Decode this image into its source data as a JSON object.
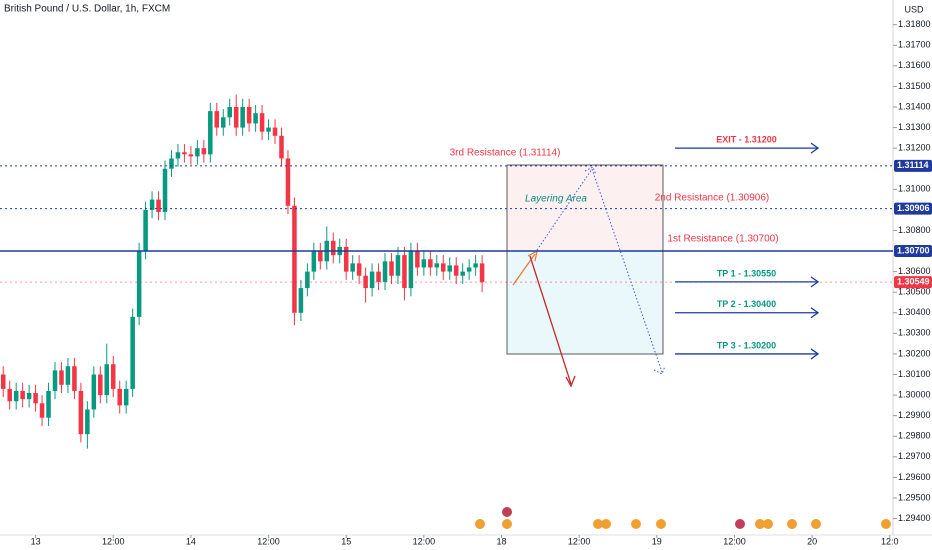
{
  "chart_data": {
    "type": "candlestick",
    "title": "British Pound / U.S. Dollar, 1h, FXCM",
    "currency": "USD",
    "up_color": "#089981",
    "down_color": "#f23645",
    "open": [
      1.301,
      1.3003,
      1.2997,
      1.3002,
      1.2998,
      1.3001,
      1.2996,
      1.2989,
      1.3002,
      1.3012,
      1.3005,
      1.3014,
      1.3002,
      1.2981,
      1.2993,
      1.301,
      1.3,
      1.3015,
      1.3003,
      1.2995,
      1.3003,
      1.3038,
      1.307,
      1.309,
      1.3095,
      1.3089,
      1.311,
      1.3115,
      1.3118,
      1.3117,
      1.3116,
      1.312,
      1.3117,
      1.3138,
      1.313,
      1.3135,
      1.314,
      1.313,
      1.314,
      1.3132,
      1.3137,
      1.3128,
      1.313,
      1.3126,
      1.3115,
      1.3092,
      1.304,
      1.3052,
      1.306,
      1.307,
      1.3065,
      1.3075,
      1.3068,
      1.3072,
      1.306,
      1.3064,
      1.3058,
      1.3052,
      1.306,
      1.3055,
      1.3065,
      1.3058,
      1.3068,
      1.3052,
      1.307,
      1.3062,
      1.3066,
      1.3062,
      1.3064,
      1.306,
      1.3063,
      1.3058,
      1.306,
      1.3062,
      1.3064
    ],
    "high": [
      1.3014,
      1.3007,
      1.3006,
      1.3006,
      1.3005,
      1.3005,
      1.3,
      1.3006,
      1.3016,
      1.3016,
      1.3018,
      1.3018,
      1.3006,
      1.2997,
      1.3014,
      1.3014,
      1.3025,
      1.3019,
      1.3007,
      1.3007,
      1.3042,
      1.3074,
      1.3094,
      1.3099,
      1.3099,
      1.3114,
      1.3119,
      1.3122,
      1.3122,
      1.3121,
      1.3124,
      1.3124,
      1.3142,
      1.3142,
      1.3139,
      1.3144,
      1.3146,
      1.3144,
      1.3144,
      1.3141,
      1.3141,
      1.3134,
      1.3134,
      1.313,
      1.3119,
      1.3096,
      1.3056,
      1.3064,
      1.3074,
      1.3074,
      1.3082,
      1.3079,
      1.3076,
      1.3076,
      1.3068,
      1.3068,
      1.3062,
      1.3064,
      1.3064,
      1.3069,
      1.3069,
      1.3072,
      1.3072,
      1.3074,
      1.3074,
      1.307,
      1.307,
      1.3068,
      1.3068,
      1.3067,
      1.3067,
      1.3064,
      1.3066,
      1.3068,
      1.3068
    ],
    "low": [
      1.2999,
      1.2993,
      1.2993,
      1.2994,
      1.2994,
      1.2992,
      1.2985,
      1.2985,
      1.2998,
      1.3001,
      1.3001,
      1.2998,
      1.2977,
      1.2974,
      1.2989,
      1.2996,
      1.2996,
      1.2999,
      1.2991,
      1.2991,
      1.2999,
      1.3034,
      1.3066,
      1.3086,
      1.3085,
      1.3085,
      1.3106,
      1.3111,
      1.3113,
      1.3112,
      1.3112,
      1.3113,
      1.3113,
      1.3126,
      1.3126,
      1.3131,
      1.3126,
      1.3126,
      1.3128,
      1.3128,
      1.3124,
      1.3124,
      1.3122,
      1.3111,
      1.3088,
      1.3034,
      1.3036,
      1.3048,
      1.3056,
      1.3061,
      1.3061,
      1.3064,
      1.3064,
      1.3056,
      1.3056,
      1.3054,
      1.3045,
      1.3048,
      1.3051,
      1.3051,
      1.3054,
      1.3054,
      1.3046,
      1.3048,
      1.3058,
      1.3058,
      1.3058,
      1.3058,
      1.3056,
      1.3056,
      1.3054,
      1.3054,
      1.3056,
      1.3058,
      1.305
    ],
    "close": [
      1.3003,
      1.2997,
      1.3002,
      1.2998,
      1.3001,
      1.2996,
      1.2989,
      1.3002,
      1.3012,
      1.3005,
      1.3014,
      1.3002,
      1.2981,
      1.2993,
      1.301,
      1.3,
      1.3015,
      1.3003,
      1.2995,
      1.3003,
      1.3038,
      1.307,
      1.309,
      1.3095,
      1.3089,
      1.311,
      1.3115,
      1.3118,
      1.3117,
      1.3116,
      1.312,
      1.3117,
      1.3138,
      1.313,
      1.3135,
      1.314,
      1.313,
      1.314,
      1.3132,
      1.3137,
      1.3128,
      1.313,
      1.3126,
      1.3115,
      1.3092,
      1.304,
      1.3052,
      1.306,
      1.307,
      1.3065,
      1.3075,
      1.3068,
      1.3072,
      1.306,
      1.3064,
      1.3058,
      1.3052,
      1.306,
      1.3055,
      1.3065,
      1.3058,
      1.3068,
      1.3052,
      1.307,
      1.3062,
      1.3066,
      1.3062,
      1.3064,
      1.306,
      1.3063,
      1.3058,
      1.306,
      1.3062,
      1.3064,
      1.30549
    ],
    "xlim": [
      -0.5,
      137.5
    ],
    "xticks": [
      {
        "value": 5,
        "label": "13"
      },
      {
        "value": 17,
        "label": "12:00"
      },
      {
        "value": 29,
        "label": "14"
      },
      {
        "value": 41,
        "label": "12:00"
      },
      {
        "value": 53,
        "label": "15"
      },
      {
        "value": 65,
        "label": "12:00"
      },
      {
        "value": 77,
        "label": "18"
      },
      {
        "value": 89,
        "label": "12:00"
      },
      {
        "value": 101,
        "label": "19"
      },
      {
        "value": 113,
        "label": "12:00"
      },
      {
        "value": 125,
        "label": "20"
      },
      {
        "value": 137,
        "label": "12:0"
      }
    ],
    "ylim": [
      1.2932,
      1.3192
    ],
    "yticks": [
      {
        "value": 1.294,
        "label": "1.29400"
      },
      {
        "value": 1.295,
        "label": "1.29500"
      },
      {
        "value": 1.296,
        "label": "1.29600"
      },
      {
        "value": 1.297,
        "label": "1.29700"
      },
      {
        "value": 1.298,
        "label": "1.29800"
      },
      {
        "value": 1.299,
        "label": "1.29900"
      },
      {
        "value": 1.3,
        "label": "1.30000"
      },
      {
        "value": 1.301,
        "label": "1.30100"
      },
      {
        "value": 1.302,
        "label": "1.30200"
      },
      {
        "value": 1.303,
        "label": "1.30300"
      },
      {
        "value": 1.304,
        "label": "1.30400"
      },
      {
        "value": 1.305,
        "label": "1.30500"
      },
      {
        "value": 1.306,
        "label": "1.30600"
      },
      {
        "value": 1.308,
        "label": "1.30800"
      },
      {
        "value": 1.31,
        "label": "1.31000"
      },
      {
        "value": 1.312,
        "label": "1.31200"
      },
      {
        "value": 1.313,
        "label": "1.31300"
      },
      {
        "value": 1.314,
        "label": "1.31400"
      },
      {
        "value": 1.315,
        "label": "1.31500"
      },
      {
        "value": 1.316,
        "label": "1.31600"
      },
      {
        "value": 1.317,
        "label": "1.31700"
      },
      {
        "value": 1.318,
        "label": "1.31800"
      }
    ],
    "levels": [
      {
        "value": 1.31114,
        "label": "1.31114",
        "color": "#1e3a9e",
        "style": "dotted"
      },
      {
        "value": 1.30906,
        "label": "1.30906",
        "color": "#1e3a9e",
        "style": "dotted"
      },
      {
        "value": 1.307,
        "label": "1.30700",
        "color": "#1e3a9e",
        "style": "solid"
      },
      {
        "value": 1.30549,
        "label": "1.30549",
        "color": "#f23645",
        "style": "dotted"
      }
    ],
    "targets": [
      {
        "value": 1.312,
        "label": "EXIT - 1.31200",
        "color": "#f23645"
      },
      {
        "value": 1.3055,
        "label": "TP 1 - 1.30550",
        "color": "#089981"
      },
      {
        "value": 1.304,
        "label": "TP 2 - 1.30400",
        "color": "#089981"
      },
      {
        "value": 1.302,
        "label": "TP 3 - 1.30200",
        "color": "#089981"
      }
    ],
    "annotations": [
      "3rd Resistance (1.31114)",
      "2nd Resistance (1.30906)",
      "1st Resistance (1.30700)",
      "Layering Area"
    ]
  }
}
